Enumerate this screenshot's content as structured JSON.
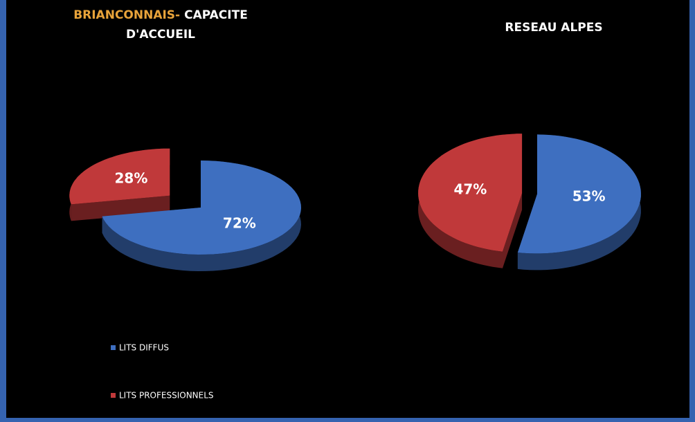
{
  "chart_data": [
    {
      "type": "pie3d",
      "title": [
        "BRIANCONNAIS-",
        "CAPACITE",
        "D'ACCUEIL"
      ],
      "title_colors": [
        "#e8a33a",
        "#ffffff",
        "#ffffff"
      ],
      "categories": [
        "LITS DIFFUS",
        "LITS PROFESSIONNELS"
      ],
      "values": [
        72,
        28
      ],
      "value_labels": [
        "72%",
        "28%"
      ],
      "colors": [
        "#3e6fc0",
        "#c0393a"
      ],
      "legend": "bottom-left"
    },
    {
      "type": "pie3d",
      "title": [
        "RESEAU ALPES"
      ],
      "title_colors": [
        "#ffffff"
      ],
      "values": [
        53,
        47
      ],
      "value_labels": [
        "53%",
        "47%"
      ],
      "colors": [
        "#3e6fc0",
        "#c0393a"
      ]
    }
  ]
}
